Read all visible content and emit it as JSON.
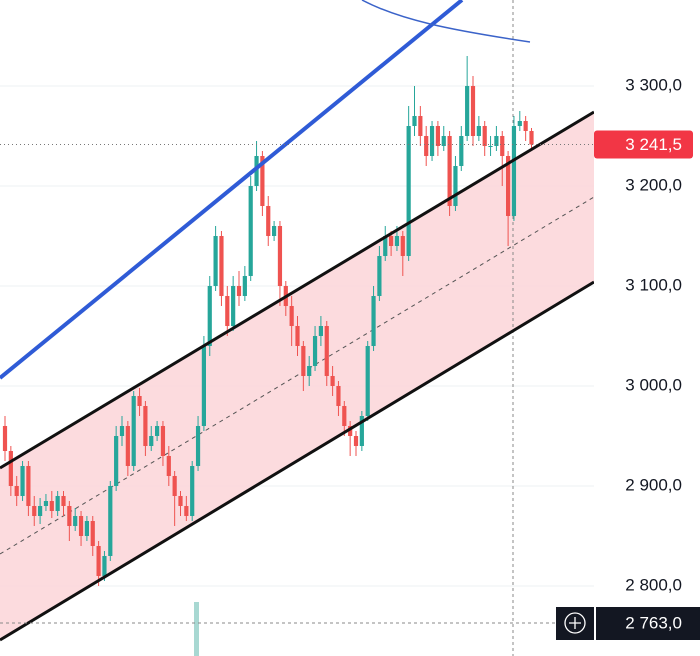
{
  "chart_data": {
    "type": "candlestick",
    "up_color": "#26a69a",
    "down_color": "#ef5350",
    "grid": true,
    "ylim": [
      2730,
      3386
    ],
    "yticks": [
      {
        "value": 3300,
        "label": "3 300,0"
      },
      {
        "value": 3200,
        "label": "3 200,0"
      },
      {
        "value": 3100,
        "label": "3 100,0"
      },
      {
        "value": 3000,
        "label": "3 000,0"
      },
      {
        "value": 2900,
        "label": "2 900,0"
      },
      {
        "value": 2800,
        "label": "2 800,0"
      }
    ],
    "last_price": {
      "value": 3241.5,
      "label": "3 241,5",
      "color": "#f23645"
    },
    "crosshair_price": {
      "value": 2763,
      "label": "2 763,0"
    },
    "open": [
      2960,
      2935,
      2900,
      2890,
      2920,
      2880,
      2870,
      2880,
      2885,
      2875,
      2890,
      2880,
      2860,
      2870,
      2850,
      2865,
      2840,
      2810,
      2830,
      2900,
      2950,
      2960,
      2920,
      2990,
      2980,
      2940,
      2950,
      2960,
      2930,
      2910,
      2890,
      2880,
      2870,
      2920,
      2960,
      3040,
      3100,
      3150,
      3090,
      3060,
      3100,
      3090,
      3110,
      3200,
      3230,
      3180,
      3150,
      3160,
      3100,
      3080,
      3060,
      3040,
      3010,
      3020,
      3050,
      3060,
      3010,
      3000,
      2980,
      2960,
      2950,
      2940,
      2970,
      3040,
      3090,
      3130,
      3150,
      3140,
      3150,
      3130,
      3260,
      3270,
      3250,
      3230,
      3260,
      3240,
      3250,
      3180,
      3220,
      3250,
      3300,
      3250,
      3260,
      3240,
      3240,
      3250,
      3230,
      3170,
      3260,
      3265,
      3255
    ],
    "high": [
      2970,
      2940,
      2910,
      2925,
      2925,
      2890,
      2888,
      2892,
      2895,
      2895,
      2895,
      2885,
      2878,
      2875,
      2870,
      2870,
      2845,
      2835,
      2905,
      2960,
      2970,
      2965,
      2995,
      2998,
      2985,
      2960,
      2965,
      2965,
      2940,
      2915,
      2895,
      2890,
      2925,
      2970,
      3050,
      3110,
      3160,
      3155,
      3100,
      3110,
      3115,
      3120,
      3210,
      3245,
      3235,
      3190,
      3165,
      3165,
      3105,
      3090,
      3070,
      3045,
      3030,
      3060,
      3070,
      3065,
      3020,
      3005,
      2985,
      2965,
      2955,
      2975,
      3045,
      3100,
      3140,
      3160,
      3155,
      3160,
      3155,
      3280,
      3300,
      3280,
      3260,
      3265,
      3265,
      3260,
      3255,
      3230,
      3260,
      3330,
      3310,
      3270,
      3265,
      3250,
      3260,
      3255,
      3235,
      3270,
      3275,
      3270,
      3258
    ],
    "low": [
      2925,
      2890,
      2880,
      2885,
      2870,
      2860,
      2862,
      2875,
      2868,
      2870,
      2870,
      2845,
      2855,
      2840,
      2845,
      2830,
      2800,
      2805,
      2825,
      2895,
      2940,
      2910,
      2915,
      2970,
      2930,
      2935,
      2945,
      2920,
      2900,
      2860,
      2870,
      2865,
      2865,
      2915,
      2955,
      3030,
      3095,
      3080,
      3050,
      3055,
      3080,
      3085,
      3105,
      3195,
      3170,
      3140,
      3145,
      3080,
      3070,
      3040,
      3030,
      2995,
      3000,
      3015,
      3040,
      3000,
      2990,
      2970,
      2950,
      2930,
      2930,
      2935,
      2965,
      3035,
      3085,
      3125,
      3130,
      3135,
      3110,
      3125,
      3250,
      3240,
      3220,
      3225,
      3230,
      3235,
      3170,
      3175,
      3215,
      3245,
      3240,
      3245,
      3230,
      3230,
      3235,
      3200,
      3140,
      3165,
      3255,
      3245,
      3235
    ],
    "close": [
      2935,
      2900,
      2890,
      2920,
      2880,
      2870,
      2880,
      2885,
      2875,
      2890,
      2880,
      2860,
      2870,
      2850,
      2865,
      2840,
      2810,
      2830,
      2900,
      2950,
      2960,
      2920,
      2990,
      2980,
      2940,
      2950,
      2960,
      2930,
      2910,
      2890,
      2880,
      2870,
      2920,
      2960,
      3040,
      3100,
      3150,
      3090,
      3060,
      3100,
      3090,
      3110,
      3200,
      3230,
      3180,
      3150,
      3160,
      3100,
      3080,
      3060,
      3040,
      3010,
      3020,
      3050,
      3060,
      3010,
      3000,
      2980,
      2960,
      2950,
      2940,
      2970,
      3040,
      3090,
      3130,
      3150,
      3140,
      3150,
      3130,
      3260,
      3270,
      3250,
      3230,
      3260,
      3240,
      3250,
      3180,
      3220,
      3250,
      3300,
      3250,
      3260,
      3240,
      3240,
      3250,
      3230,
      3170,
      3260,
      3265,
      3255,
      3241.5
    ]
  }
}
